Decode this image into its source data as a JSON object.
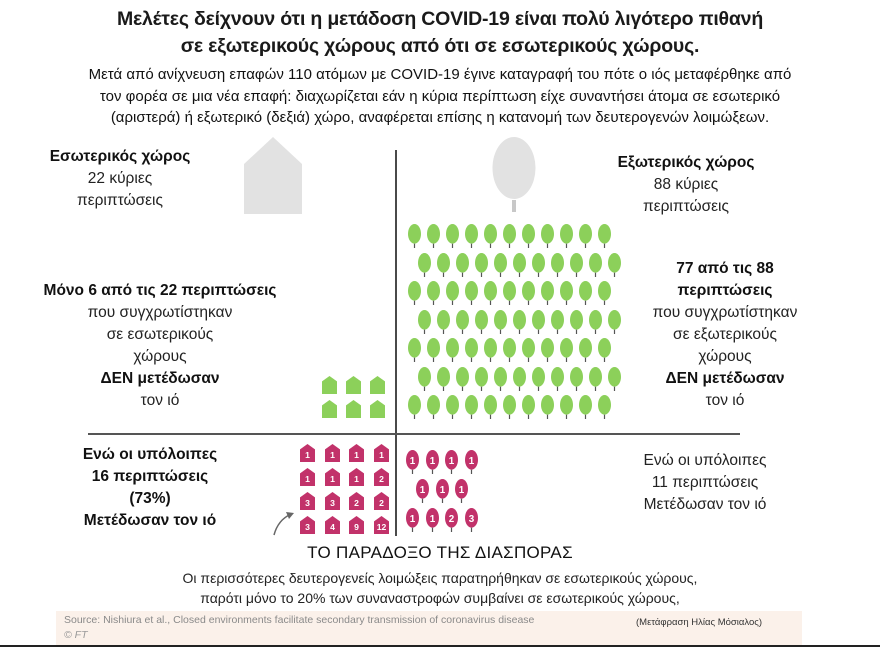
{
  "header": {
    "title_line1": "Μελέτες δείχνουν ότι η μετάδοση COVID-19 είναι πολύ λιγότερο πιθανή",
    "title_line2": "σε εξωτερικούς χώρους από ότι σε εσωτερικούς χώρους.",
    "subtitle_line1": "Μετά από ανίχνευση επαφών 110 ατόμων με COVID-19 έγινε καταγραφή του πότε ο ιός μεταφέρθηκε από",
    "subtitle_line2": "τον φορέα σε μια νέα επαφή: διαχωρίζεται εάν η κύρια περίπτωση είχε συναντήσει άτομα σε εσωτερικό",
    "subtitle_line3": "(αριστερά) ή εξωτερικό (δεξιά) χώρο, αναφέρεται επίσης η κατανομή των δευτερογενών λοιμώξεων."
  },
  "indoor": {
    "icon": "house-icon",
    "heading": "Εσωτερικός  χώρος",
    "count_line": "22 κύριες",
    "count_unit": "περιπτώσεις",
    "no_spread": {
      "line1": "Μόνο 6 από τις 22 περιπτώσεις",
      "line2": "που συγχρωτίστηκαν",
      "line3": "σε εσωτερικούς",
      "line4": "χώρους",
      "line5": "ΔΕΝ μετέδωσαν",
      "line6": "τον ιό"
    },
    "spread": {
      "line1": "Ενώ οι υπόλοιπες",
      "line2": "16 περιπτώσεις",
      "line3": "(73%)",
      "line4": "Μετέδωσαν  τον ιό"
    },
    "non_spreaders_count": 6,
    "secondary_infections": [
      "1",
      "1",
      "1",
      "1",
      "1",
      "1",
      "1",
      "2",
      "3",
      "3",
      "2",
      "2",
      "3",
      "4",
      "9",
      "12"
    ]
  },
  "outdoor": {
    "icon": "tree-icon",
    "heading": "Εξωτερικός  χώρος",
    "count_line": "88 κύριες",
    "count_unit": "περιπτώσεις",
    "no_spread": {
      "line1": "77 από τις 88",
      "line2": "περιπτώσεις",
      "line3": "που συγχρωτίστηκαν",
      "line4": "σε εξωτερικούς",
      "line5": "χώρους",
      "line6": "ΔΕΝ μετέδωσαν",
      "line7": "τον ιό"
    },
    "spread": {
      "line1": "Ενώ οι υπόλοιπες",
      "line2": "11 περιπτώσεις",
      "line3": "Μετέδωσαν τον ιό"
    },
    "non_spreaders_count": 77,
    "secondary_infections": [
      "1",
      "1",
      "1",
      "1",
      "1",
      "1",
      "1",
      "1",
      "1",
      "2",
      "3"
    ]
  },
  "paradox": {
    "title": "ΤΟ ΠΑΡΑΔΟΞΟ ΤΗΣ ΔΙΑΣΠΟΡΑΣ",
    "line1": "Οι περισσότερες δευτερογενείς λοιμώξεις παρατηρήθηκαν σε εσωτερικούς  χώρους,",
    "line2": "παρότι μόνο το 20% των συναναστροφών συμβαίνει σε εσωτερικούς  χώρους,"
  },
  "footer": {
    "source": "Source: Nishiura et al., Closed environments facilitate secondary transmission of coronavirus disease",
    "copyright": "© FT",
    "translation": "(Μετάφραση Ηλίας Μόσιαλος)"
  },
  "colors": {
    "green": "#8cd05a",
    "pink": "#c2326a",
    "grey_icon": "#e2e2e2",
    "divider": "#4a4a4a",
    "footer_bg": "#fbf1ea"
  },
  "chart_data": {
    "type": "table",
    "title": "Μελέτες δείχνουν ότι η μετάδοση COVID-19 είναι πολύ λιγότερο πιθανή σε εξωτερικούς χώρους από ότι σε εσωτερικούς χώρους.",
    "categories": [
      "Εσωτερικός χώρος",
      "Εξωτερικός χώρος"
    ],
    "series": [
      {
        "name": "Κύριες περιπτώσεις",
        "values": [
          22,
          88
        ]
      },
      {
        "name": "ΔΕΝ μετέδωσαν",
        "values": [
          6,
          77
        ]
      },
      {
        "name": "Μετέδωσαν",
        "values": [
          16,
          11
        ]
      }
    ],
    "secondary_infections_per_case": {
      "Εσωτερικός χώρος": [
        1,
        1,
        1,
        1,
        1,
        1,
        1,
        2,
        3,
        3,
        2,
        2,
        3,
        4,
        9,
        12
      ],
      "Εξωτερικός χώρος": [
        1,
        1,
        1,
        1,
        1,
        1,
        1,
        1,
        1,
        2,
        3
      ]
    },
    "annotations": [
      "(73%)",
      "μόνο το 20% των συναναστροφών συμβαίνει σε εσωτερικούς χώρους"
    ]
  }
}
